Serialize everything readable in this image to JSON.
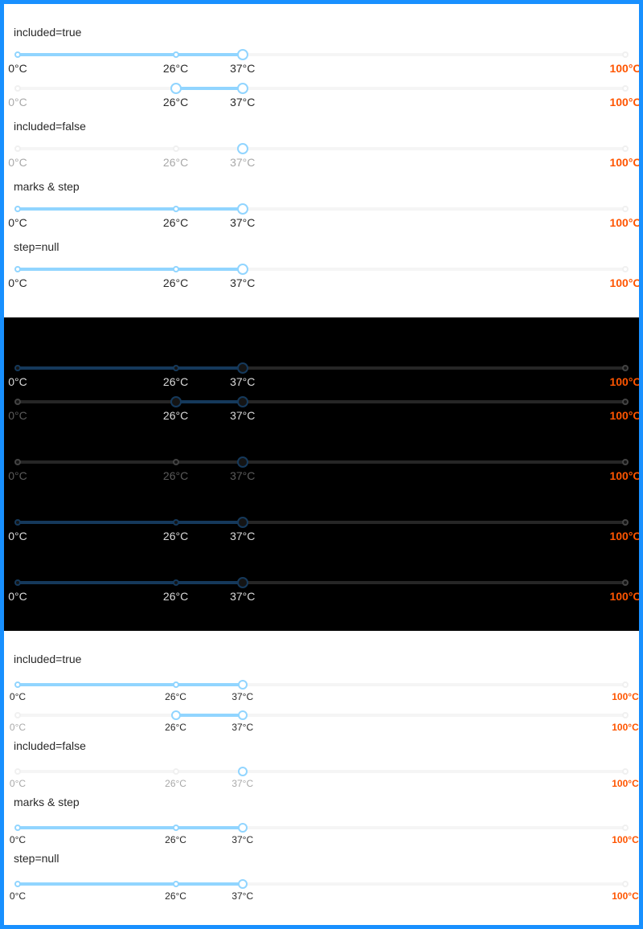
{
  "labels": {
    "included_true": "included=true",
    "included_false": "included=false",
    "marks_step": "marks & step",
    "step_null": "step=null"
  },
  "marks": [
    "0°C",
    "26°C",
    "37°C",
    "100°C"
  ],
  "mark_values": [
    0,
    26,
    37,
    100
  ],
  "colors": {
    "frame_border": "#1890ff",
    "track_light": "#91d5ff",
    "track_dark": "#15395b",
    "hot_mark": "#ff5500"
  },
  "sliders": [
    {
      "id": "included-true-single",
      "range": false,
      "included": true,
      "value": 37
    },
    {
      "id": "included-true-range",
      "range": true,
      "included": true,
      "value": [
        26,
        37
      ]
    },
    {
      "id": "included-false",
      "range": false,
      "included": false,
      "value": 37
    },
    {
      "id": "marks-step",
      "range": false,
      "included": true,
      "value": 37
    },
    {
      "id": "step-null",
      "range": false,
      "included": true,
      "value": 37
    }
  ]
}
